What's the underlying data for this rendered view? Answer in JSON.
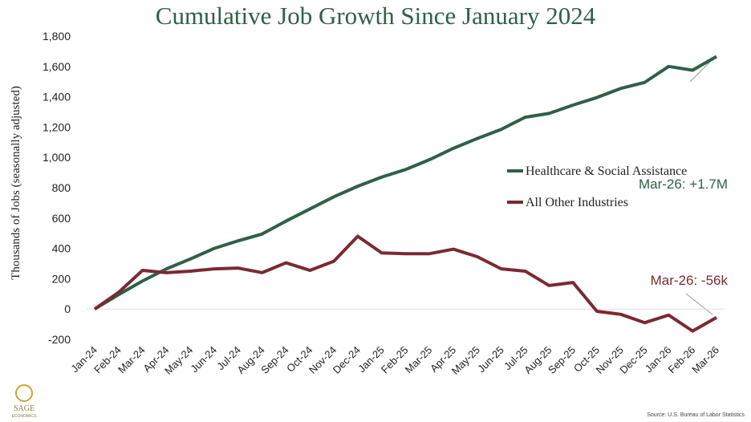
{
  "chart_data": {
    "type": "line",
    "title": "Cumulative Job Growth Since January 2024",
    "y_label": "Thousands of Jobs (seasonally adjusted)",
    "categories": [
      "Jan-24",
      "Feb-24",
      "Mar-24",
      "Apr-24",
      "May-24",
      "Jun-24",
      "Jul-24",
      "Aug-24",
      "Sep-24",
      "Oct-24",
      "Nov-24",
      "Dec-24",
      "Jan-25",
      "Feb-25",
      "Mar-25",
      "Apr-25",
      "May-25",
      "Jun-25",
      "Jul-25",
      "Aug-25",
      "Sep-25",
      "Oct-25",
      "Nov-25",
      "Dec-25",
      "Jan-26",
      "Feb-26",
      "Mar-26"
    ],
    "series": [
      {
        "name": "Healthcare & Social Assistance",
        "color": "#2e6048",
        "values": [
          0,
          95,
          185,
          265,
          330,
          400,
          450,
          495,
          580,
          660,
          740,
          810,
          870,
          920,
          985,
          1060,
          1125,
          1185,
          1265,
          1290,
          1345,
          1395,
          1455,
          1495,
          1600,
          1575,
          1665
        ]
      },
      {
        "name": "All Other Industries",
        "color": "#7a2a32",
        "values": [
          0,
          110,
          255,
          240,
          250,
          265,
          270,
          240,
          305,
          255,
          315,
          480,
          370,
          365,
          365,
          395,
          345,
          265,
          250,
          155,
          175,
          -15,
          -35,
          -90,
          -40,
          -145,
          -56
        ]
      }
    ],
    "ylim": [
      -200,
      1800
    ],
    "yticks": [
      -200,
      0,
      200,
      400,
      600,
      800,
      {
        "value": 1000,
        "label": "1,000"
      },
      {
        "value": 1200,
        "label": "1,200"
      },
      {
        "value": 1400,
        "label": "1,400"
      },
      {
        "value": 1600,
        "label": "1,600"
      },
      {
        "value": 1800,
        "label": "1,800"
      }
    ],
    "legend": "right",
    "annotations": [
      "Mar-26: +1.7M",
      "Mar-26: -56k"
    ],
    "source": "Source: U.S. Bureau of Labor Statistics",
    "logo": {
      "name": "SAGE",
      "tagline": "ECONOMICS"
    }
  }
}
